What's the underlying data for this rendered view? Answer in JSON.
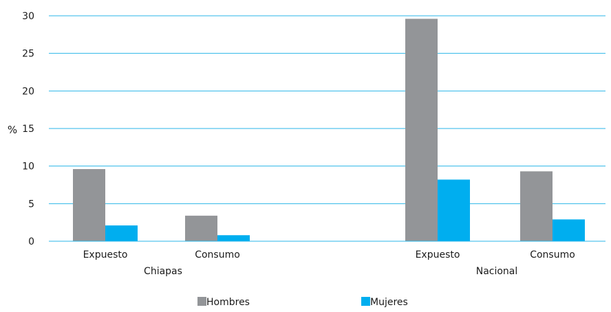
{
  "chart_data": {
    "type": "bar",
    "ylabel": "%",
    "ylim": [
      0,
      30
    ],
    "yticks": [
      "0",
      "5",
      "10",
      "15",
      "20",
      "25",
      "30"
    ],
    "grid": true,
    "legend_position": "bottom",
    "groups": [
      {
        "label": "Chiapas",
        "categories": [
          "Expuesto",
          "Consumo"
        ],
        "series_values": [
          [
            9.6,
            2.1
          ],
          [
            3.4,
            0.8
          ]
        ]
      },
      {
        "label": "Nacional",
        "categories": [
          "Expuesto",
          "Consumo"
        ],
        "series_values": [
          [
            29.6,
            8.2
          ],
          [
            9.3,
            2.9
          ]
        ]
      }
    ],
    "series": [
      {
        "name": "Hombres",
        "color": "#939598"
      },
      {
        "name": "Mujeres",
        "color": "#00aeef"
      }
    ],
    "gridline_color": "#29b6e8",
    "axis_color": "#29b6e8"
  }
}
